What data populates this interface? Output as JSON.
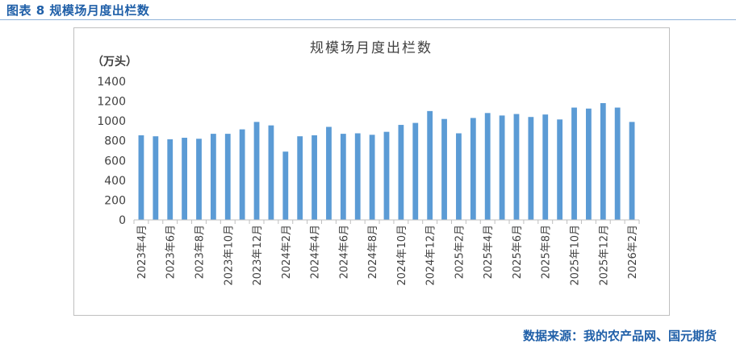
{
  "caption": "图表 8  规模场月度出栏数",
  "source": "数据来源：我的农产品网、国元期货",
  "colors": {
    "bar": "#5b9bd5",
    "caption": "#1f5fa8"
  },
  "chart_data": {
    "type": "bar",
    "title": "规模场月度出栏数",
    "ylabel": "（万头）",
    "xlabel": "",
    "ylim": [
      0,
      1400
    ],
    "yticks": [
      0,
      200,
      400,
      600,
      800,
      1000,
      1200,
      1400
    ],
    "grid": false,
    "categories": [
      "2023年4月",
      "2023年5月",
      "2023年6月",
      "2023年7月",
      "2023年8月",
      "2023年9月",
      "2023年10月",
      "2023年11月",
      "2023年12月",
      "2024年1月",
      "2024年2月",
      "2024年3月",
      "2024年4月",
      "2024年5月",
      "2024年6月",
      "2024年7月",
      "2024年8月",
      "2024年9月",
      "2024年10月",
      "2024年11月",
      "2024年12月",
      "2025年1月",
      "2025年2月",
      "2025年3月",
      "2025年4月",
      "2025年5月",
      "2025年6月",
      "2025年7月",
      "2025年8月",
      "2025年9月",
      "2025年10月",
      "2025年11月",
      "2025年12月",
      "2026年1月",
      "2026年2月"
    ],
    "tick_labels_shown": [
      "2023年4月",
      "2023年6月",
      "2023年8月",
      "2023年10月",
      "2023年12月",
      "2024年2月",
      "2024年4月",
      "2024年6月",
      "2024年8月",
      "2024年10月",
      "2024年12月",
      "2025年2月",
      "2025年4月",
      "2025年6月",
      "2025年8月",
      "2025年10月",
      "2025年12月",
      "2026年2月"
    ],
    "values": [
      855,
      845,
      815,
      830,
      820,
      870,
      870,
      915,
      990,
      955,
      690,
      845,
      855,
      940,
      870,
      875,
      860,
      890,
      960,
      980,
      1100,
      1020,
      875,
      1030,
      1080,
      1055,
      1070,
      1040,
      1065,
      1015,
      1135,
      1125,
      1180,
      1135,
      990
    ]
  }
}
